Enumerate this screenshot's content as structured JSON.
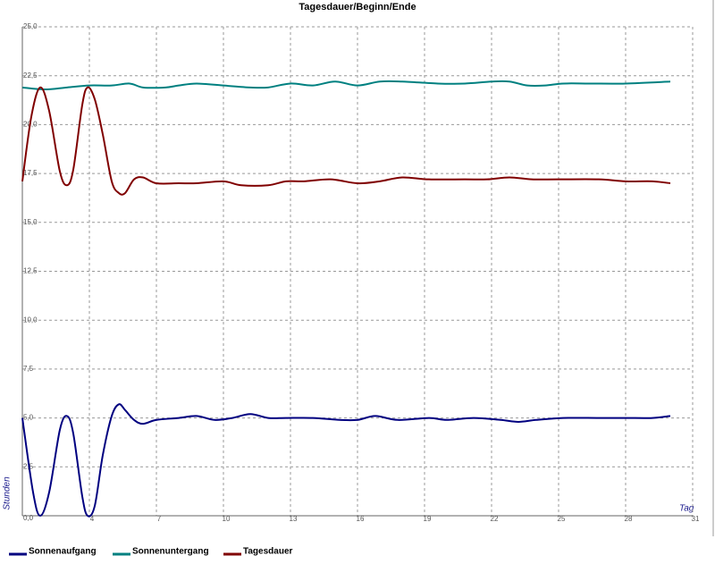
{
  "chart_data": {
    "type": "line",
    "title": "Tagesdauer/Beginn/Ende",
    "x_label": "Tag",
    "y_label": "Stunden",
    "xlim": [
      1,
      31
    ],
    "xticks": [
      4,
      7,
      10,
      13,
      16,
      19,
      22,
      25,
      28,
      31
    ],
    "ylim": [
      0,
      25
    ],
    "yticks": [
      {
        "value": 0,
        "label": "0,0"
      },
      {
        "value": 2.5,
        "label": "2,5"
      },
      {
        "value": 5,
        "label": "5,0"
      },
      {
        "value": 7.5,
        "label": "7,5"
      },
      {
        "value": 10,
        "label": "10,0"
      },
      {
        "value": 12.5,
        "label": "12,5"
      },
      {
        "value": 15,
        "label": "15,0"
      },
      {
        "value": 17.5,
        "label": "17,5"
      },
      {
        "value": 20,
        "label": "20,0"
      },
      {
        "value": 22.5,
        "label": "22,5"
      },
      {
        "value": 25,
        "label": "25,0"
      }
    ],
    "grid": true,
    "series": [
      {
        "name": "Sonnenaufgang",
        "color": "#000080",
        "x": [
          1,
          1.48,
          1.8,
          2.2,
          2.68,
          3,
          3.28,
          3.68,
          3.92,
          4.24,
          4.6,
          5,
          5.32,
          5.6,
          6,
          6.4,
          7,
          8,
          8.8,
          9.6,
          10.4,
          11.2,
          12,
          12.8,
          14,
          15.2,
          16,
          16.8,
          17.8,
          19.2,
          20,
          21.2,
          22.4,
          23.2,
          24,
          25.2,
          26.8,
          28,
          29.2,
          30
        ],
        "values": [
          5.0,
          1.2,
          0.0,
          1.2,
          4.4,
          5.1,
          4.2,
          1.0,
          0.0,
          0.5,
          3.1,
          5.1,
          5.7,
          5.4,
          4.9,
          4.7,
          4.9,
          5.0,
          5.1,
          4.9,
          5.0,
          5.2,
          5.0,
          5.0,
          5.0,
          4.9,
          4.9,
          5.1,
          4.9,
          5.0,
          4.9,
          5.0,
          4.9,
          4.8,
          4.9,
          5.0,
          5.0,
          5.0,
          5.0,
          5.1
        ]
      },
      {
        "name": "Sonnenuntergang",
        "color": "#008080",
        "x": [
          1,
          2,
          3,
          4,
          5,
          5.8,
          6.4,
          7.4,
          8,
          8.8,
          10,
          11.2,
          12,
          13,
          14,
          15,
          16,
          17,
          18,
          19.6,
          20.8,
          22,
          22.8,
          23.6,
          24.4,
          25.2,
          26.4,
          28,
          30
        ],
        "values": [
          21.9,
          21.8,
          21.9,
          22.0,
          22.0,
          22.1,
          21.9,
          21.9,
          22.0,
          22.1,
          22.0,
          21.9,
          21.9,
          22.1,
          22.0,
          22.2,
          22.0,
          22.2,
          22.2,
          22.1,
          22.1,
          22.2,
          22.2,
          22.0,
          22.0,
          22.1,
          22.1,
          22.1,
          22.2
        ]
      },
      {
        "name": "Tagesdauer",
        "color": "#800000",
        "x": [
          1,
          1.4,
          1.8,
          2.2,
          2.68,
          3,
          3.28,
          3.68,
          3.92,
          4.24,
          4.6,
          5,
          5.32,
          5.6,
          6,
          6.4,
          7,
          8,
          8.8,
          10,
          10.8,
          12,
          12.8,
          13.6,
          14.8,
          16,
          17,
          18,
          19.2,
          20.8,
          21.8,
          22.8,
          23.8,
          25,
          26.8,
          28,
          29.2,
          30
        ],
        "values": [
          17.1,
          20.4,
          21.9,
          20.7,
          17.6,
          16.9,
          17.7,
          21.0,
          21.9,
          21.3,
          19.5,
          17.1,
          16.5,
          16.5,
          17.2,
          17.3,
          17.0,
          17.0,
          17.0,
          17.1,
          16.9,
          16.9,
          17.1,
          17.1,
          17.2,
          17.0,
          17.1,
          17.3,
          17.2,
          17.2,
          17.2,
          17.3,
          17.2,
          17.2,
          17.2,
          17.1,
          17.1,
          17.0
        ]
      }
    ]
  }
}
